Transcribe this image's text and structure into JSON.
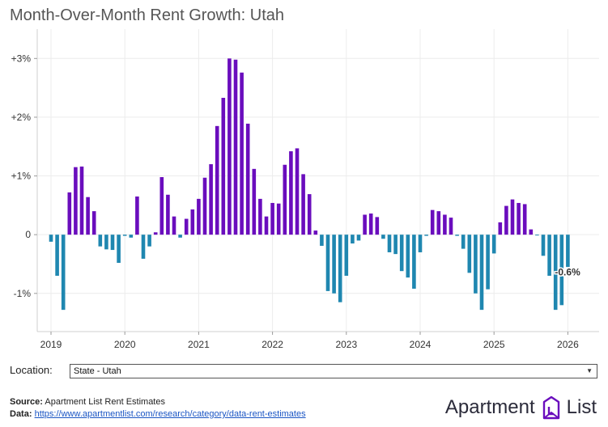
{
  "title": "Month-Over-Month Rent Growth: Utah",
  "location": {
    "label": "Location:",
    "selected": "State - Utah"
  },
  "footer": {
    "source_label": "Source:",
    "source_text": "Apartment List Rent Estimates",
    "data_label": "Data:",
    "data_link": "https://www.apartmentlist.com/research/category/data-rent-estimates"
  },
  "brand": {
    "left": "Apartment",
    "right": "List"
  },
  "colors": {
    "positive": "#6a0dbd",
    "negative": "#1f87b0"
  },
  "chart_data": {
    "type": "bar",
    "title": "Month-Over-Month Rent Growth: Utah",
    "start": "2019-01",
    "y_ticks": [
      {
        "v": 3,
        "label": "+3%"
      },
      {
        "v": 2,
        "label": "+2%"
      },
      {
        "v": 1,
        "label": "+1%"
      },
      {
        "v": 0,
        "label": "0"
      },
      {
        "v": -1,
        "label": "-1%"
      }
    ],
    "x_ticks": [
      "2019",
      "2020",
      "2021",
      "2022",
      "2023",
      "2024",
      "2025",
      "2026"
    ],
    "ylim": [
      -1.65,
      3.5
    ],
    "last_label": "-0.6%",
    "values": [
      -0.12,
      -0.7,
      -1.28,
      0.72,
      1.15,
      1.16,
      0.64,
      0.4,
      -0.2,
      -0.25,
      -0.26,
      -0.48,
      -0.02,
      -0.05,
      0.65,
      -0.41,
      -0.2,
      0.04,
      0.98,
      0.68,
      0.31,
      -0.05,
      0.27,
      0.43,
      0.61,
      0.97,
      1.2,
      1.85,
      2.33,
      3.0,
      2.98,
      2.76,
      1.89,
      1.12,
      0.61,
      0.31,
      0.54,
      0.53,
      1.19,
      1.42,
      1.47,
      1.03,
      0.69,
      0.07,
      -0.19,
      -0.96,
      -1.0,
      -1.15,
      -0.7,
      -0.15,
      -0.1,
      0.34,
      0.36,
      0.3,
      -0.07,
      -0.3,
      -0.33,
      -0.62,
      -0.73,
      -0.92,
      -0.3,
      -0.02,
      0.42,
      0.4,
      0.34,
      0.29,
      -0.02,
      -0.24,
      -0.65,
      -1.0,
      -1.28,
      -0.93,
      -0.32,
      0.21,
      0.49,
      0.6,
      0.54,
      0.52,
      0.09,
      -0.01,
      -0.36,
      -0.7,
      -1.28,
      -1.2,
      -0.55
    ]
  }
}
